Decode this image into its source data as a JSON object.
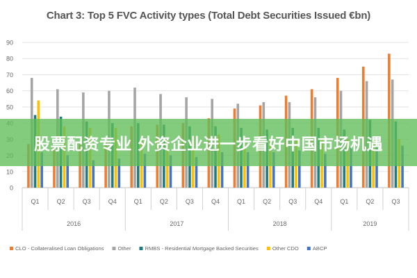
{
  "chart_data": {
    "type": "bar",
    "title": "Chart 3: Top 5 FVC Activity types (Total Debt Securities Issued €bn)",
    "ylim": [
      0,
      90
    ],
    "yticks": [
      0,
      10,
      20,
      30,
      40,
      50,
      60,
      70,
      80,
      90
    ],
    "grid": true,
    "legend_position": "bottom",
    "categories": [
      "Q1",
      "Q2",
      "Q3",
      "Q4",
      "Q1",
      "Q2",
      "Q3",
      "Q4",
      "Q1",
      "Q2",
      "Q3",
      "Q4",
      "Q1",
      "Q2",
      "Q3"
    ],
    "year_groups": [
      {
        "label": "2016",
        "count": 4
      },
      {
        "label": "2017",
        "count": 4
      },
      {
        "label": "2018",
        "count": 4
      },
      {
        "label": "2019",
        "count": 3
      }
    ],
    "series": [
      {
        "name": "CLO - Collateralised Loan Obligations",
        "color": "#ed7d31",
        "values": [
          27,
          26,
          27,
          28,
          38,
          39,
          40,
          43,
          49,
          51,
          57,
          61,
          68,
          75,
          83
        ]
      },
      {
        "name": "Other",
        "color": "#a5a5a5",
        "values": [
          68,
          61,
          59,
          60,
          62,
          58,
          56,
          55,
          52,
          53,
          53,
          56,
          60,
          66,
          67
        ]
      },
      {
        "name": "RMBS - Residential Mortgage Backed Securities",
        "color": "#1f7a82",
        "values": [
          45,
          44,
          41,
          40,
          40,
          39,
          38,
          38,
          37,
          36,
          37,
          37,
          36,
          42,
          41
        ]
      },
      {
        "name": "Other CDO",
        "color": "#ffc000",
        "values": [
          54,
          38,
          37,
          37,
          30,
          31,
          32,
          33,
          28,
          29,
          30,
          30,
          30,
          30,
          30
        ]
      },
      {
        "name": "ABCP",
        "color": "#4472c4",
        "values": [
          22,
          20,
          17,
          18,
          21,
          20,
          19,
          22,
          22,
          22,
          23,
          21,
          25,
          27,
          26
        ]
      }
    ]
  },
  "banner": {
    "text": "股票配资专业 外资企业进一步看好中国市场机遇"
  }
}
